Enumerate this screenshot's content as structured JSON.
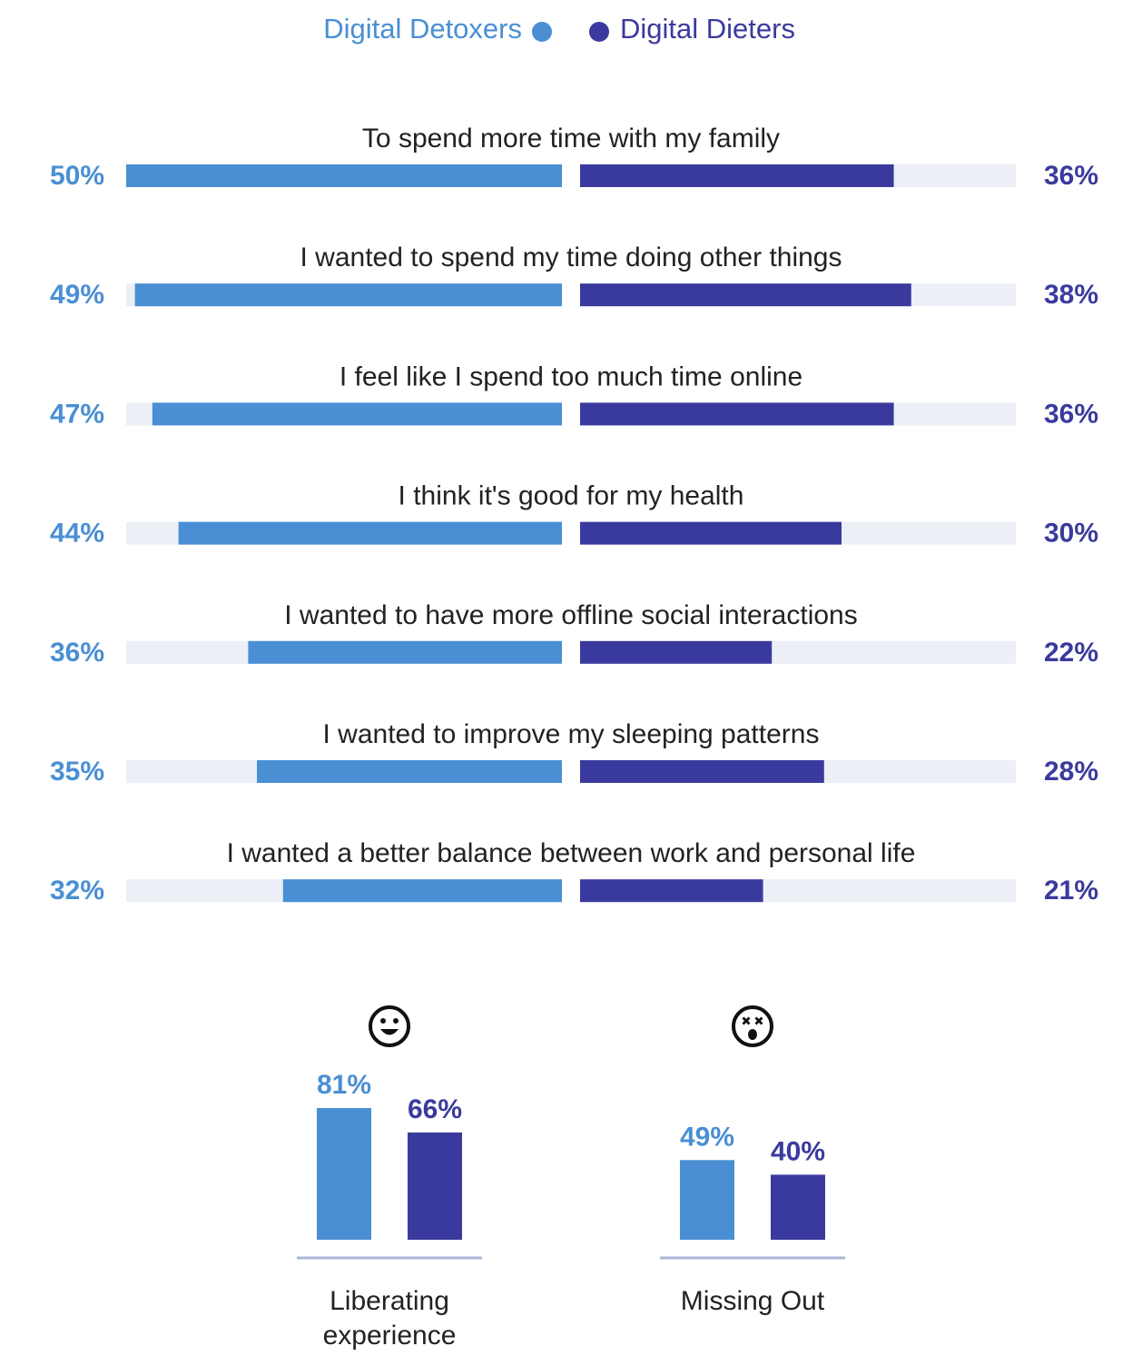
{
  "colors": {
    "detoxers": "#4A8FD4",
    "dieters": "#3A3A9E",
    "track": "#ECEFF6",
    "baseline": "#A9B6D8",
    "text": "#222222"
  },
  "legend": {
    "detoxers": "Digital Detoxers",
    "dieters": "Digital Dieters"
  },
  "chart_data": [
    {
      "type": "bar",
      "orientation": "horizontal-diverging",
      "xlim": [
        0,
        50
      ],
      "categories": [
        "To spend more time with my family",
        "I wanted to spend my time doing other things",
        "I feel like I spend too much time online",
        "I think it's good for my health",
        "I wanted to have more offline social interactions",
        "I wanted to improve my sleeping patterns",
        "I wanted a better balance between work and personal life"
      ],
      "series": [
        {
          "name": "Digital Detoxers",
          "values": [
            50,
            49,
            47,
            44,
            36,
            35,
            32
          ],
          "labels": [
            "50%",
            "49%",
            "47%",
            "44%",
            "36%",
            "35%",
            "32%"
          ]
        },
        {
          "name": "Digital Dieters",
          "values": [
            36,
            38,
            36,
            30,
            22,
            28,
            21
          ],
          "labels": [
            "36%",
            "38%",
            "36%",
            "30%",
            "22%",
            "28%",
            "21%"
          ]
        }
      ]
    },
    {
      "type": "bar",
      "ylim": [
        0,
        100
      ],
      "categories": [
        "Liberating experience",
        "Missing Out"
      ],
      "icons": [
        "smiley-face-icon",
        "dizzy-face-icon"
      ],
      "series": [
        {
          "name": "Digital Detoxers",
          "values": [
            81,
            49
          ],
          "labels": [
            "81%",
            "49%"
          ]
        },
        {
          "name": "Digital Dieters",
          "values": [
            66,
            40
          ],
          "labels": [
            "66%",
            "40%"
          ]
        }
      ]
    }
  ]
}
